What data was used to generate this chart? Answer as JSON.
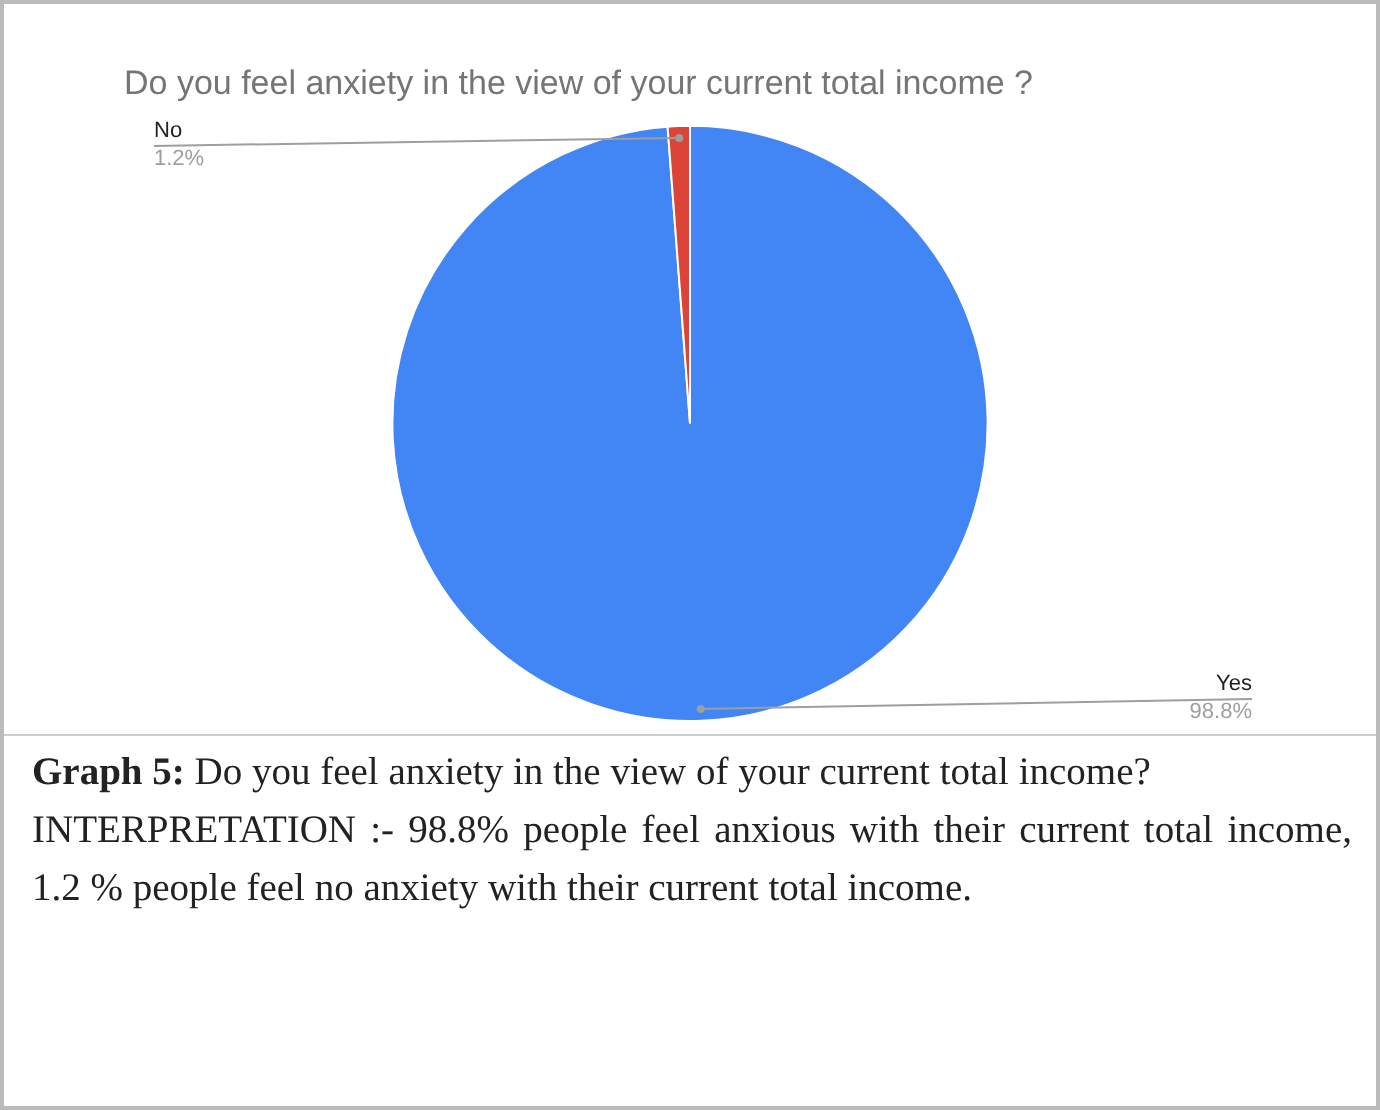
{
  "chart_data": {
    "type": "pie",
    "title": "Do you feel anxiety in the view of your current total income ?",
    "categories": [
      "Yes",
      "No"
    ],
    "values": [
      98.8,
      1.2
    ],
    "colors": [
      "#4285f4",
      "#db4437"
    ],
    "value_labels": [
      "98.8%",
      "1.2%"
    ],
    "legend": false,
    "annotations": [
      "Graph 5:",
      "Do you feel anxiety in the view of your current total income?",
      "INTERPRETATION :- 98.8% people feel anxious with their current total income, 1.2 % people feel no anxiety with their current total income."
    ]
  }
}
